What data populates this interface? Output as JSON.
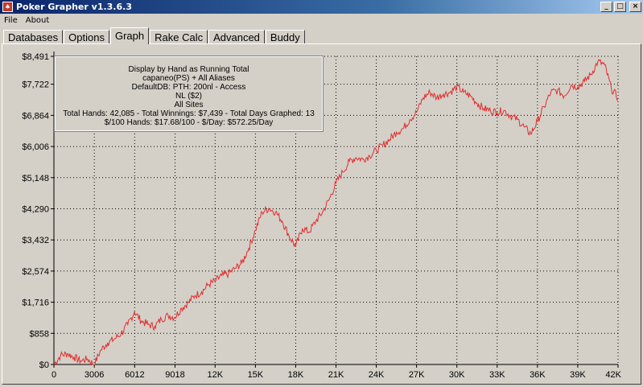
{
  "window": {
    "title": "Poker Grapher v1.3.6.3",
    "minimize": "_",
    "maximize": "□",
    "close": "×"
  },
  "menu": [
    "File",
    "About"
  ],
  "tabs": [
    {
      "label": "Databases",
      "active": false
    },
    {
      "label": "Options",
      "active": false
    },
    {
      "label": "Graph",
      "active": true
    },
    {
      "label": "Rake Calc",
      "active": false
    },
    {
      "label": "Advanced",
      "active": false
    },
    {
      "label": "Buddy",
      "active": false
    }
  ],
  "info": {
    "lines": [
      "Display by Hand as Running Total",
      "capaneo(PS) + All Aliases",
      "DefaultDB: PTH: 200nl  - Access",
      "NL ($2)",
      "All Sites",
      "Total Hands: 42,085 - Total Winnings: $7,439 - Total Days Graphed: 13",
      "$/100 Hands: $17.68/100 - $/Day: $572.25/Day"
    ]
  },
  "chart_data": {
    "type": "line",
    "xlim": [
      0,
      42000
    ],
    "ylim": [
      0,
      8491
    ],
    "x_ticks": [
      {
        "value": 0,
        "label": "0"
      },
      {
        "value": 3006,
        "label": "3006"
      },
      {
        "value": 6012,
        "label": "6012"
      },
      {
        "value": 9018,
        "label": "9018"
      },
      {
        "value": 12000,
        "label": "12K"
      },
      {
        "value": 15000,
        "label": "15K"
      },
      {
        "value": 18000,
        "label": "18K"
      },
      {
        "value": 21000,
        "label": "21K"
      },
      {
        "value": 24000,
        "label": "24K"
      },
      {
        "value": 27000,
        "label": "27K"
      },
      {
        "value": 30000,
        "label": "30K"
      },
      {
        "value": 33000,
        "label": "33K"
      },
      {
        "value": 36000,
        "label": "36K"
      },
      {
        "value": 39000,
        "label": "39K"
      },
      {
        "value": 42000,
        "label": "42K"
      }
    ],
    "y_ticks": [
      {
        "value": 0,
        "label": "$0"
      },
      {
        "value": 858,
        "label": "$858"
      },
      {
        "value": 1716,
        "label": "$1,716"
      },
      {
        "value": 2574,
        "label": "$2,574"
      },
      {
        "value": 3432,
        "label": "$3,432"
      },
      {
        "value": 4290,
        "label": "$4,290"
      },
      {
        "value": 5148,
        "label": "$5,148"
      },
      {
        "value": 6006,
        "label": "$6,006"
      },
      {
        "value": 6864,
        "label": "$6,864"
      },
      {
        "value": 7722,
        "label": "$7,722"
      },
      {
        "value": 8491,
        "label": "$8,491"
      }
    ],
    "grid": true,
    "line_color": "#e03030",
    "series": [
      {
        "x": [
          0,
          500,
          1000,
          1500,
          2000,
          2500,
          3000,
          3500,
          4000,
          4500,
          5000,
          5500,
          6000,
          6500,
          7000,
          7500,
          8000,
          8500,
          9000,
          9500,
          10000,
          10500,
          11000,
          11500,
          12000,
          12500,
          13000,
          13500,
          14000,
          14500,
          15000,
          15500,
          16000,
          16500,
          17000,
          17500,
          18000,
          18500,
          19000,
          19500,
          20000,
          20500,
          21000,
          21500,
          22000,
          22500,
          23000,
          23500,
          24000,
          24500,
          25000,
          25500,
          26000,
          26500,
          27000,
          27500,
          28000,
          28500,
          29000,
          29500,
          30000,
          30500,
          31000,
          31500,
          32000,
          32500,
          33000,
          33500,
          34000,
          34500,
          35000,
          35500,
          36000,
          36500,
          37000,
          37500,
          38000,
          38500,
          39000,
          39500,
          40000,
          40500,
          41000,
          41500,
          42000
        ],
        "y": [
          0,
          250,
          300,
          200,
          100,
          150,
          0,
          400,
          600,
          700,
          850,
          1100,
          1450,
          1200,
          1100,
          1050,
          1250,
          1350,
          1300,
          1550,
          1700,
          1900,
          2000,
          2200,
          2300,
          2450,
          2500,
          2650,
          2800,
          3200,
          3700,
          4200,
          4300,
          4200,
          3950,
          3550,
          3250,
          3750,
          3650,
          3950,
          4200,
          4550,
          5000,
          5300,
          5600,
          5700,
          5650,
          5750,
          5900,
          6050,
          6200,
          6400,
          6500,
          6750,
          6950,
          7350,
          7500,
          7350,
          7450,
          7500,
          7650,
          7500,
          7400,
          7200,
          7050,
          7000,
          6950,
          7000,
          6850,
          6750,
          6550,
          6350,
          6700,
          7100,
          7500,
          7550,
          7400,
          7700,
          7650,
          7800,
          8000,
          8350,
          8250,
          7600,
          7350
        ]
      }
    ]
  }
}
